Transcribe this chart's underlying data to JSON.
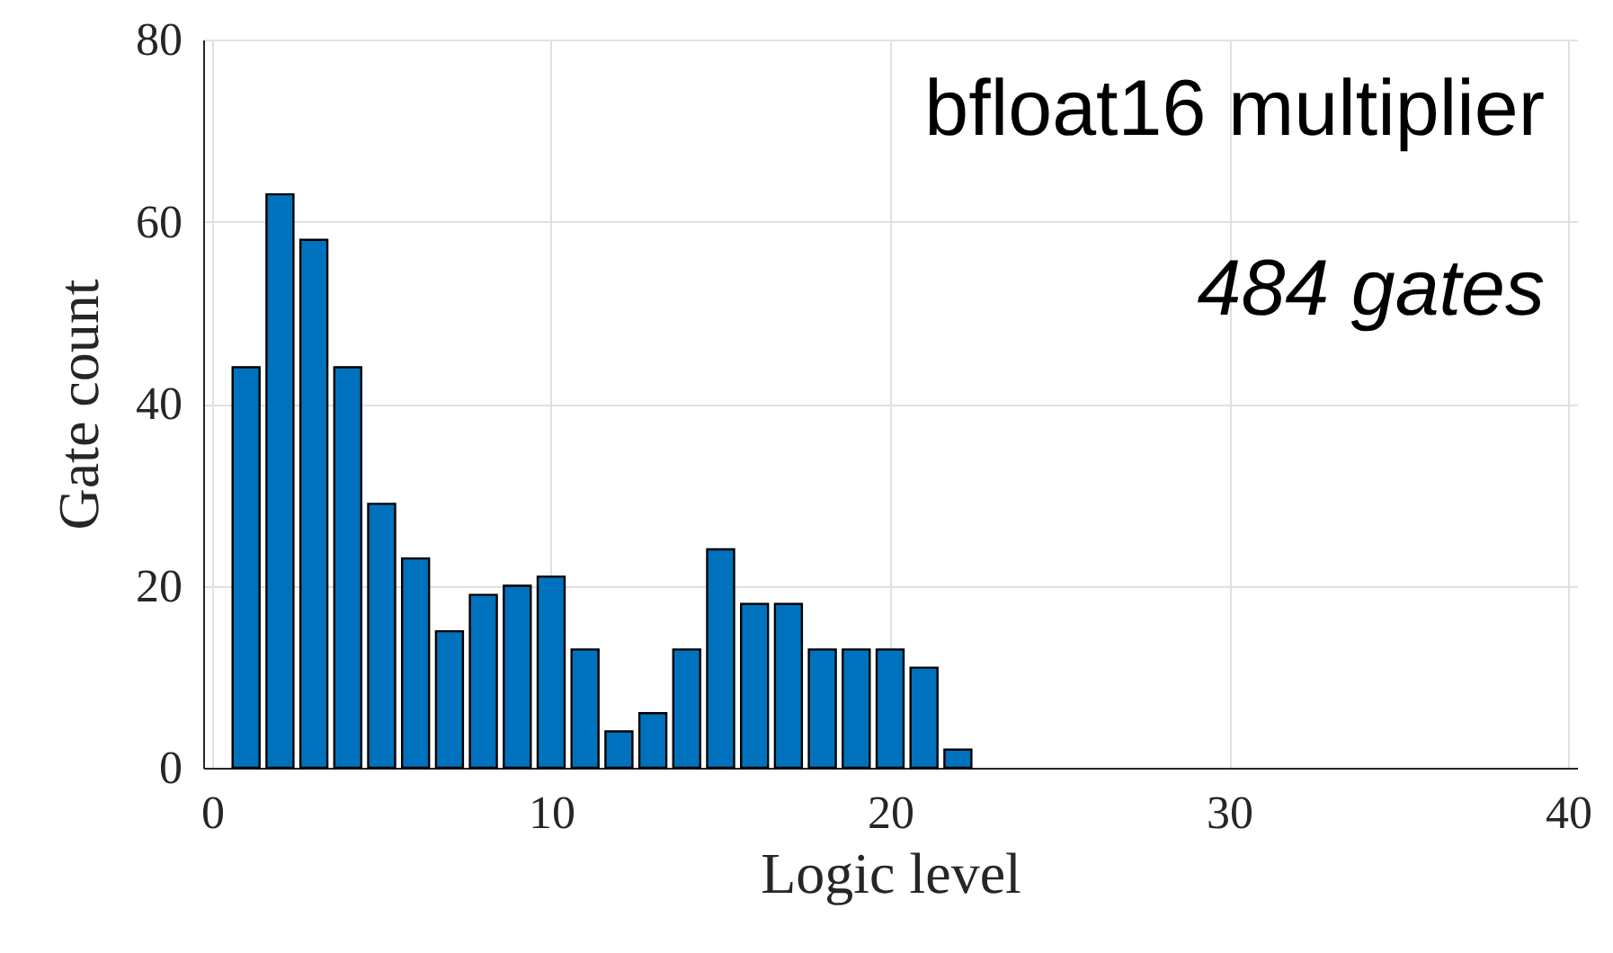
{
  "chart_data": {
    "type": "bar",
    "x": [
      1,
      2,
      3,
      4,
      5,
      6,
      7,
      8,
      9,
      10,
      11,
      12,
      13,
      14,
      15,
      16,
      17,
      18,
      19,
      20,
      21,
      22
    ],
    "values": [
      44,
      63,
      58,
      44,
      29,
      23,
      15,
      19,
      20,
      21,
      13,
      4,
      6,
      13,
      24,
      18,
      18,
      13,
      13,
      13,
      11,
      2
    ],
    "color": "#0072bd",
    "xlabel": "Logic level",
    "ylabel": "Gate count",
    "xlim": [
      0,
      40
    ],
    "xticks": [
      0,
      10,
      20,
      30,
      40
    ],
    "ylim": [
      0,
      80
    ],
    "yticks": [
      0,
      20,
      40,
      60,
      80
    ],
    "grid": true,
    "annotations": [
      "bfloat16 multiplier",
      "484 gates"
    ]
  }
}
